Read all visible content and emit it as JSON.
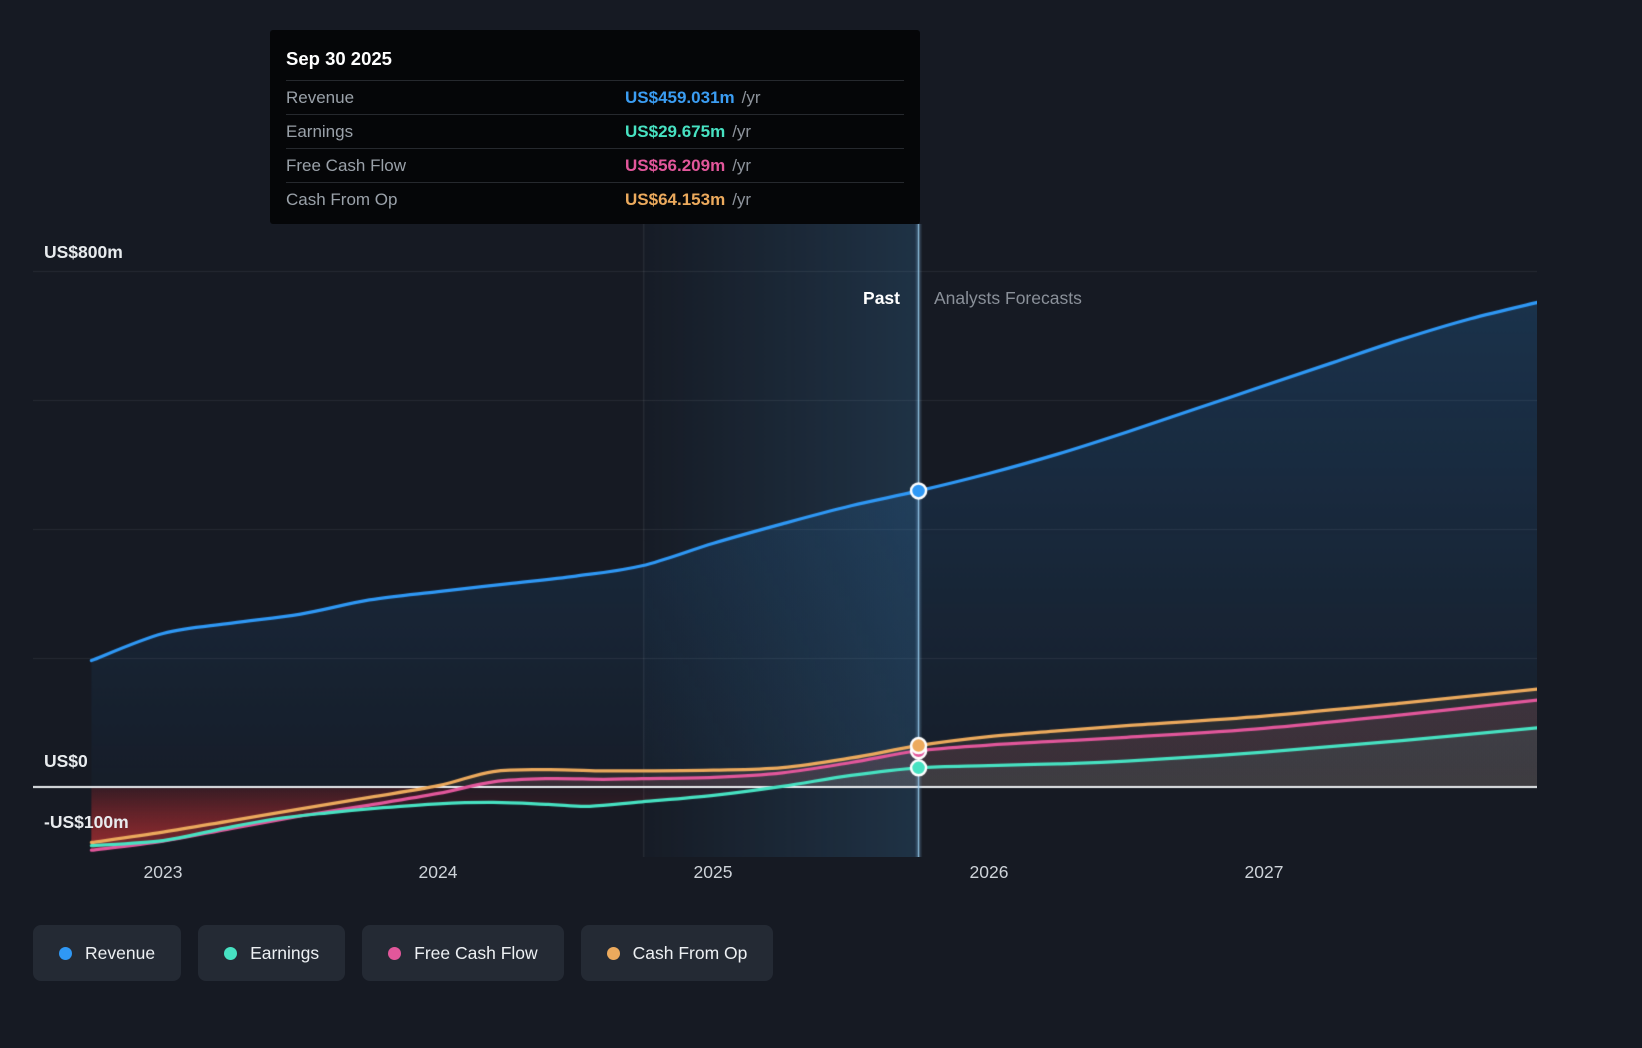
{
  "tooltip": {
    "date": "Sep 30 2025",
    "rows": [
      {
        "label": "Revenue",
        "value": "US$459.031m",
        "suffix": "/yr",
        "color": "#3b9df2"
      },
      {
        "label": "Earnings",
        "value": "US$29.675m",
        "suffix": "/yr",
        "color": "#47e2c2"
      },
      {
        "label": "Free Cash Flow",
        "value": "US$56.209m",
        "suffix": "/yr",
        "color": "#e2579b"
      },
      {
        "label": "Cash From Op",
        "value": "US$64.153m",
        "suffix": "/yr",
        "color": "#ecaa5d"
      }
    ]
  },
  "annotations": {
    "past": "Past",
    "forecast": "Analysts Forecasts"
  },
  "axis": {
    "y": [
      "US$800m",
      "US$0",
      "-US$100m"
    ],
    "x": [
      "2023",
      "2024",
      "2025",
      "2026",
      "2027"
    ]
  },
  "legend": [
    {
      "label": "Revenue",
      "color": "#2f98f5"
    },
    {
      "label": "Earnings",
      "color": "#47e2c2"
    },
    {
      "label": "Free Cash Flow",
      "color": "#e2579b"
    },
    {
      "label": "Cash From Op",
      "color": "#ecaa5d"
    }
  ],
  "chart_data": {
    "type": "line",
    "x_unit": "year",
    "x_range": [
      2022.74,
      2028.0
    ],
    "y_gridlines": [
      200,
      400,
      600,
      800
    ],
    "y_axis_labeled": [
      800,
      0,
      -100
    ],
    "divider_x": 2025.745,
    "divider_date": "Sep 30 2025",
    "past_band": [
      2024.745,
      2025.745
    ],
    "negative_fill": "rgba(188,52,54,0.42)",
    "zero_line_color": "#e9ecef",
    "series": [
      {
        "name": "Revenue",
        "color": "#2f98f5",
        "z": 4,
        "marker": 459.031,
        "fill_top": "rgba(47,152,245,0.22)",
        "fill_bottom": "rgba(47,152,245,0.03)",
        "points": [
          [
            2022.74,
            196
          ],
          [
            2023,
            238
          ],
          [
            2023.25,
            254
          ],
          [
            2023.5,
            268
          ],
          [
            2023.75,
            290
          ],
          [
            2024,
            303
          ],
          [
            2024.25,
            315
          ],
          [
            2024.5,
            327
          ],
          [
            2024.74,
            343
          ],
          [
            2025,
            378
          ],
          [
            2025.25,
            408
          ],
          [
            2025.5,
            436
          ],
          [
            2025.745,
            459.031
          ],
          [
            2026,
            486
          ],
          [
            2026.25,
            516
          ],
          [
            2026.5,
            550
          ],
          [
            2026.75,
            586
          ],
          [
            2027,
            622
          ],
          [
            2027.25,
            658
          ],
          [
            2027.5,
            694
          ],
          [
            2027.75,
            726
          ],
          [
            2028,
            752
          ]
        ]
      },
      {
        "name": "Earnings",
        "color": "#47e2c2",
        "z": 3,
        "marker": 29.675,
        "fill_top": "rgba(71,226,194,0.12)",
        "fill_bottom": "rgba(71,226,194,0.08)",
        "points": [
          [
            2022.74,
            -91
          ],
          [
            2023,
            -83
          ],
          [
            2023.2,
            -66
          ],
          [
            2023.4,
            -50
          ],
          [
            2023.6,
            -40
          ],
          [
            2023.8,
            -32
          ],
          [
            2024,
            -26
          ],
          [
            2024.2,
            -24
          ],
          [
            2024.4,
            -27
          ],
          [
            2024.55,
            -30
          ],
          [
            2024.74,
            -23
          ],
          [
            2025,
            -13
          ],
          [
            2025.25,
            1
          ],
          [
            2025.5,
            18
          ],
          [
            2025.745,
            29.675
          ],
          [
            2026,
            33
          ],
          [
            2026.25,
            36
          ],
          [
            2026.5,
            40
          ],
          [
            2027,
            54
          ],
          [
            2027.5,
            72
          ],
          [
            2028,
            92
          ]
        ]
      },
      {
        "name": "Free Cash Flow",
        "color": "#e2579b",
        "z": 1,
        "marker": 56.209,
        "fill_top": "rgba(226,87,155,0.13)",
        "fill_bottom": "rgba(226,87,155,0.09)",
        "points": [
          [
            2022.74,
            -98
          ],
          [
            2023,
            -84
          ],
          [
            2023.25,
            -64
          ],
          [
            2023.5,
            -45
          ],
          [
            2023.75,
            -28
          ],
          [
            2024,
            -10
          ],
          [
            2024.2,
            8
          ],
          [
            2024.4,
            13
          ],
          [
            2024.6,
            12
          ],
          [
            2024.74,
            13
          ],
          [
            2025,
            15
          ],
          [
            2025.25,
            22
          ],
          [
            2025.5,
            38
          ],
          [
            2025.745,
            56.209
          ],
          [
            2026,
            65
          ],
          [
            2026.25,
            71
          ],
          [
            2026.5,
            77
          ],
          [
            2027,
            91
          ],
          [
            2027.5,
            112
          ],
          [
            2028,
            135
          ]
        ]
      },
      {
        "name": "Cash From Op",
        "color": "#ecaa5d",
        "z": 2,
        "marker": 64.153,
        "fill_top": "rgba(236,170,93,0.13)",
        "fill_bottom": "rgba(236,170,93,0.09)",
        "points": [
          [
            2022.74,
            -86
          ],
          [
            2023,
            -70
          ],
          [
            2023.25,
            -52
          ],
          [
            2023.5,
            -34
          ],
          [
            2023.75,
            -16
          ],
          [
            2024,
            2
          ],
          [
            2024.2,
            24
          ],
          [
            2024.4,
            27
          ],
          [
            2024.6,
            25
          ],
          [
            2024.74,
            25
          ],
          [
            2025,
            26
          ],
          [
            2025.25,
            30
          ],
          [
            2025.5,
            45
          ],
          [
            2025.745,
            64.153
          ],
          [
            2026,
            78
          ],
          [
            2026.25,
            87
          ],
          [
            2026.5,
            95
          ],
          [
            2027,
            110
          ],
          [
            2027.5,
            130
          ],
          [
            2028,
            152
          ]
        ]
      }
    ]
  }
}
